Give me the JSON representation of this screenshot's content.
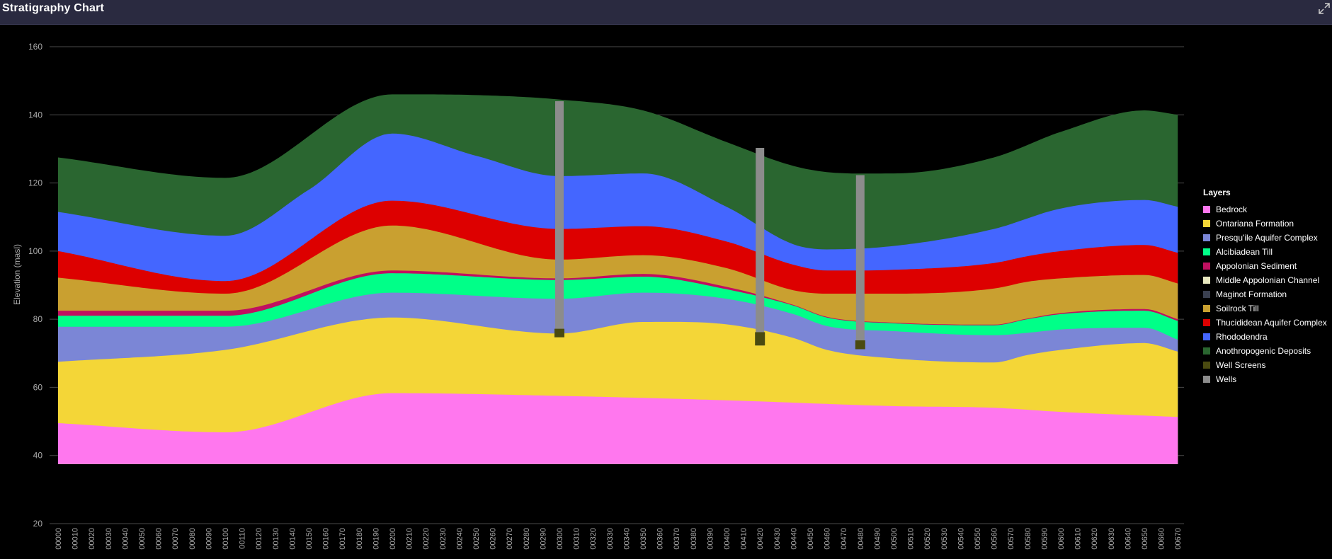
{
  "window": {
    "title": "Stratigraphy Chart",
    "expand_icon": "expand-icon"
  },
  "chart_data": {
    "type": "area",
    "stacked": true,
    "x": [
      "00000",
      "00010",
      "00020",
      "00030",
      "00040",
      "00050",
      "00060",
      "00070",
      "00080",
      "00090",
      "00100",
      "00110",
      "00120",
      "00130",
      "00140",
      "00150",
      "00160",
      "00170",
      "00180",
      "00190",
      "00200",
      "00210",
      "00220",
      "00230",
      "00240",
      "00250",
      "00260",
      "00270",
      "00280",
      "00290",
      "00300",
      "00310",
      "00320",
      "00330",
      "00340",
      "00350",
      "00360",
      "00370",
      "00380",
      "00390",
      "00400",
      "00410",
      "00420",
      "00430",
      "00440",
      "00450",
      "00460",
      "00470",
      "00480",
      "00490",
      "00500",
      "00510",
      "00520",
      "00530",
      "00540",
      "00550",
      "00560",
      "00570",
      "00580",
      "00590",
      "00600",
      "00610",
      "00620",
      "00630",
      "00640",
      "00650",
      "00660",
      "00670"
    ],
    "ylabel": "Elevation (masl)",
    "xlabel": "",
    "ylim": [
      20,
      160
    ],
    "yticks": [
      20,
      40,
      60,
      80,
      100,
      120,
      140,
      160
    ],
    "grid": true,
    "base_elevation": 37.5,
    "legend_position": "right",
    "series": [
      {
        "name": "Bedrock",
        "color": "#ff77ee",
        "key_x": [
          0,
          10,
          20,
          30,
          40,
          50,
          56,
          60,
          67
        ],
        "key_top": [
          49.5,
          46.8,
          58.3,
          57.5,
          56.2,
          54.5,
          54.0,
          52.8,
          51.3
        ]
      },
      {
        "name": "Ontariana Formation",
        "color": "#f4d637",
        "key_x": [
          0,
          10,
          20,
          30,
          35,
          40,
          44,
          46,
          50,
          56,
          58,
          60,
          65,
          67
        ],
        "key_top": [
          67.5,
          71.0,
          80.5,
          75.8,
          79.2,
          78.5,
          74.5,
          71.0,
          68.5,
          67.3,
          69.5,
          71.0,
          73.0,
          70.5
        ]
      },
      {
        "name": "Presqu'ile Aquifer Complex",
        "color": "#7b86d6",
        "key_x": [
          0,
          10,
          20,
          30,
          35,
          40,
          44,
          46,
          50,
          56,
          58,
          60,
          65,
          67
        ],
        "key_top": [
          77.8,
          77.8,
          87.8,
          86.0,
          87.8,
          86.0,
          81.5,
          78.0,
          76.5,
          75.3,
          76.0,
          77.0,
          77.5,
          74.0
        ]
      },
      {
        "name": "Alcibiadean Till",
        "color": "#00ff88",
        "key_x": [
          0,
          10,
          20,
          30,
          35,
          40,
          44,
          46,
          50,
          56,
          58,
          60,
          65,
          67
        ],
        "key_top": [
          81.0,
          81.0,
          93.5,
          91.5,
          92.5,
          88.8,
          84.0,
          80.5,
          78.8,
          78.2,
          80.0,
          81.5,
          82.5,
          79.5
        ]
      },
      {
        "name": "Appolonian Sediment",
        "color": "#c01060",
        "key_x": [
          0,
          10,
          20,
          30,
          35,
          40,
          44,
          46,
          50,
          56,
          58,
          60,
          65,
          67
        ],
        "key_top": [
          82.5,
          82.5,
          94.3,
          92.0,
          93.3,
          89.5,
          84.2,
          80.7,
          79.0,
          78.4,
          80.2,
          81.8,
          83.0,
          80.0
        ]
      },
      {
        "name": "Middle Appolonian Channel",
        "color": "#e8e8c0",
        "key_x": [
          0,
          67
        ],
        "key_top": [
          82.5,
          80.0
        ],
        "thickness": 0
      },
      {
        "name": "Maginot Formation",
        "color": "#3a4050",
        "key_x": [
          0,
          67
        ],
        "key_top": [
          82.5,
          80.0
        ],
        "thickness": 0
      },
      {
        "name": "Soilrock Till",
        "color": "#c9a030",
        "key_x": [
          0,
          10,
          20,
          30,
          35,
          40,
          44,
          46,
          50,
          56,
          58,
          60,
          65,
          67
        ],
        "key_top": [
          92.2,
          87.5,
          107.5,
          97.5,
          98.8,
          95.0,
          88.5,
          87.5,
          87.5,
          89.0,
          91.0,
          92.0,
          93.0,
          90.5
        ]
      },
      {
        "name": "Thucididean Aquifer Complex",
        "color": "#dd0000",
        "key_x": [
          0,
          10,
          20,
          30,
          35,
          40,
          44,
          46,
          50,
          56,
          58,
          60,
          65,
          67
        ],
        "key_top": [
          100.0,
          91.2,
          114.8,
          106.5,
          107.3,
          102.8,
          96.0,
          94.3,
          94.5,
          96.5,
          98.5,
          100.0,
          101.8,
          99.5
        ]
      },
      {
        "name": "Rhododendra",
        "color": "#4466ff",
        "key_x": [
          0,
          10,
          15,
          20,
          25,
          30,
          35,
          40,
          44,
          46,
          50,
          56,
          60,
          65,
          67
        ],
        "key_top": [
          111.5,
          104.5,
          118.0,
          134.5,
          128.0,
          122.0,
          122.8,
          113.0,
          102.0,
          100.5,
          101.5,
          106.5,
          112.5,
          115.0,
          113.0
        ]
      },
      {
        "name": "Anothropogenic Deposits",
        "color": "#2a6630",
        "key_x": [
          0,
          10,
          20,
          25,
          30,
          35,
          40,
          44,
          46,
          50,
          56,
          60,
          65,
          67
        ],
        "key_top": [
          127.5,
          121.5,
          146.0,
          145.8,
          144.5,
          141.3,
          132.0,
          125.0,
          123.2,
          122.8,
          127.5,
          135.0,
          141.3,
          140.0
        ]
      }
    ],
    "wells": [
      {
        "x": 30,
        "top": 144.0,
        "bottom": 75.2,
        "screen_top": 77.2,
        "screen_bottom": 74.7
      },
      {
        "x": 42,
        "top": 130.3,
        "bottom": 72.3,
        "screen_top": 76.2,
        "screen_bottom": 72.3
      },
      {
        "x": 48,
        "top": 122.3,
        "bottom": 71.2,
        "screen_top": 73.8,
        "screen_bottom": 71.2
      }
    ],
    "well_style": {
      "casing_color": "#8c8c8c",
      "screen_color": "#4a4a10"
    }
  },
  "legend": {
    "title": "Layers",
    "items": [
      {
        "label": "Bedrock",
        "color": "#ff77ee"
      },
      {
        "label": "Ontariana Formation",
        "color": "#f4d637"
      },
      {
        "label": "Presqu'ile Aquifer Complex",
        "color": "#7b86d6"
      },
      {
        "label": "Alcibiadean Till",
        "color": "#00ff88"
      },
      {
        "label": "Appolonian Sediment",
        "color": "#c01060"
      },
      {
        "label": "Middle Appolonian Channel",
        "color": "#e8e8c0"
      },
      {
        "label": "Maginot Formation",
        "color": "#3a4050"
      },
      {
        "label": "Soilrock Till",
        "color": "#c9a030"
      },
      {
        "label": "Thucididean Aquifer Complex",
        "color": "#dd0000"
      },
      {
        "label": "Rhododendra",
        "color": "#4466ff"
      },
      {
        "label": "Anothropogenic Deposits",
        "color": "#2a6630"
      },
      {
        "label": "Well Screens",
        "color": "#4a4a10"
      },
      {
        "label": "Wells",
        "color": "#8c8c8c"
      }
    ]
  }
}
